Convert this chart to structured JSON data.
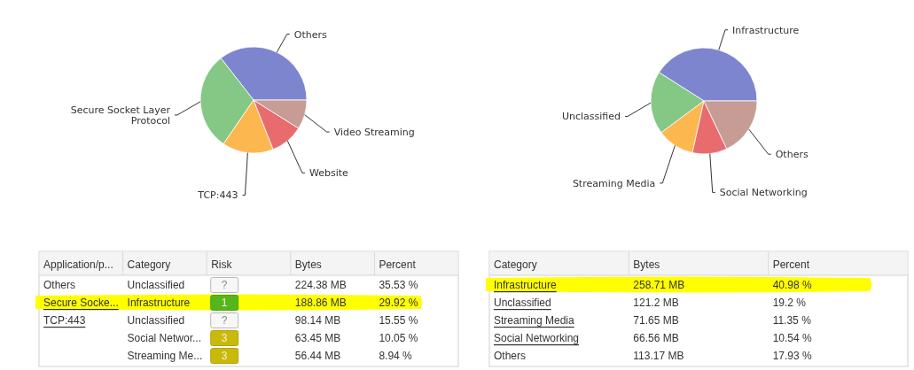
{
  "chart_data": [
    {
      "type": "pie",
      "categories": [
        "Others",
        "Secure Socket Layer Protocol",
        "TCP:443",
        "Website",
        "Video Streaming"
      ],
      "values": [
        35.53,
        29.92,
        15.55,
        10.05,
        8.94
      ],
      "colors": [
        "#7c85cd",
        "#85c785",
        "#fdb74f",
        "#e86c6e",
        "#c69c94"
      ]
    },
    {
      "type": "pie",
      "categories": [
        "Infrastructure",
        "Unclassified",
        "Streaming Media",
        "Social Networking",
        "Others"
      ],
      "values": [
        40.98,
        19.2,
        11.35,
        10.54,
        17.93
      ],
      "colors": [
        "#7c85cd",
        "#85c785",
        "#fdb74f",
        "#e86c6e",
        "#c69c94"
      ]
    },
    {
      "type": "other",
      "categories": [
        "Application/p...",
        "Category",
        "Risk",
        "Bytes",
        "Percent"
      ],
      "cell_labels": [
        [
          "Others",
          "Unclassified",
          "?",
          "224.38 MB",
          "35.53 %"
        ],
        [
          "Secure Socke...",
          "Infrastructure",
          "1",
          "188.86 MB",
          "29.92 %"
        ],
        [
          "TCP:443",
          "Unclassified",
          "?",
          "98.14 MB",
          "15.55 %"
        ],
        [
          null,
          "Social Networ...",
          "3",
          "63.45 MB",
          "10.05 %"
        ],
        [
          null,
          "Streaming Me...",
          "3",
          "56.44 MB",
          "8.94 %"
        ]
      ]
    },
    {
      "type": "other",
      "categories": [
        "Category",
        "Bytes",
        "Percent"
      ],
      "cell_labels": [
        [
          "Infrastructure",
          "258.71 MB",
          "40.98 %"
        ],
        [
          "Unclassified",
          "121.2 MB",
          "19.2 %"
        ],
        [
          "Streaming Media",
          "71.65 MB",
          "11.35 %"
        ],
        [
          "Social Networking",
          "66.56 MB",
          "10.54 %"
        ],
        [
          "Others",
          "113.17 MB",
          "17.93 %"
        ]
      ]
    }
  ]
}
